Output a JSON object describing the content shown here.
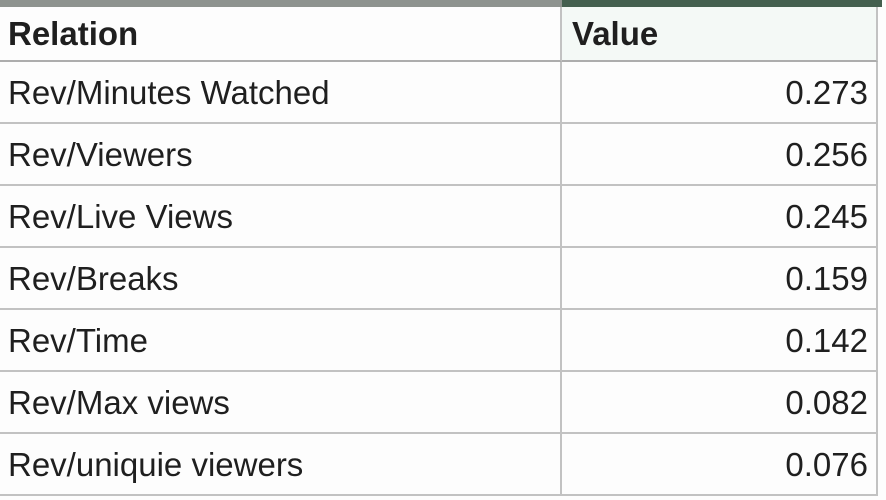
{
  "table": {
    "columns": [
      {
        "label": "Relation"
      },
      {
        "label": "Value"
      }
    ],
    "rows": [
      {
        "relation": "Rev/Minutes Watched",
        "value": "0.273"
      },
      {
        "relation": "Rev/Viewers",
        "value": "0.256"
      },
      {
        "relation": "Rev/Live Views",
        "value": "0.245"
      },
      {
        "relation": "Rev/Breaks",
        "value": "0.159"
      },
      {
        "relation": "Rev/Time",
        "value": "0.142"
      },
      {
        "relation": "Rev/Max views",
        "value": "0.082"
      },
      {
        "relation": "Rev/uniquie viewers",
        "value": "0.076"
      }
    ]
  },
  "colors": {
    "top_bar_left": "#8e938f",
    "top_bar_right": "#44604f",
    "gridline": "#c2c2c2",
    "gridline_dark": "#adadad",
    "text": "#1f1f1f",
    "value_header_tint": "#f4f9f6"
  }
}
